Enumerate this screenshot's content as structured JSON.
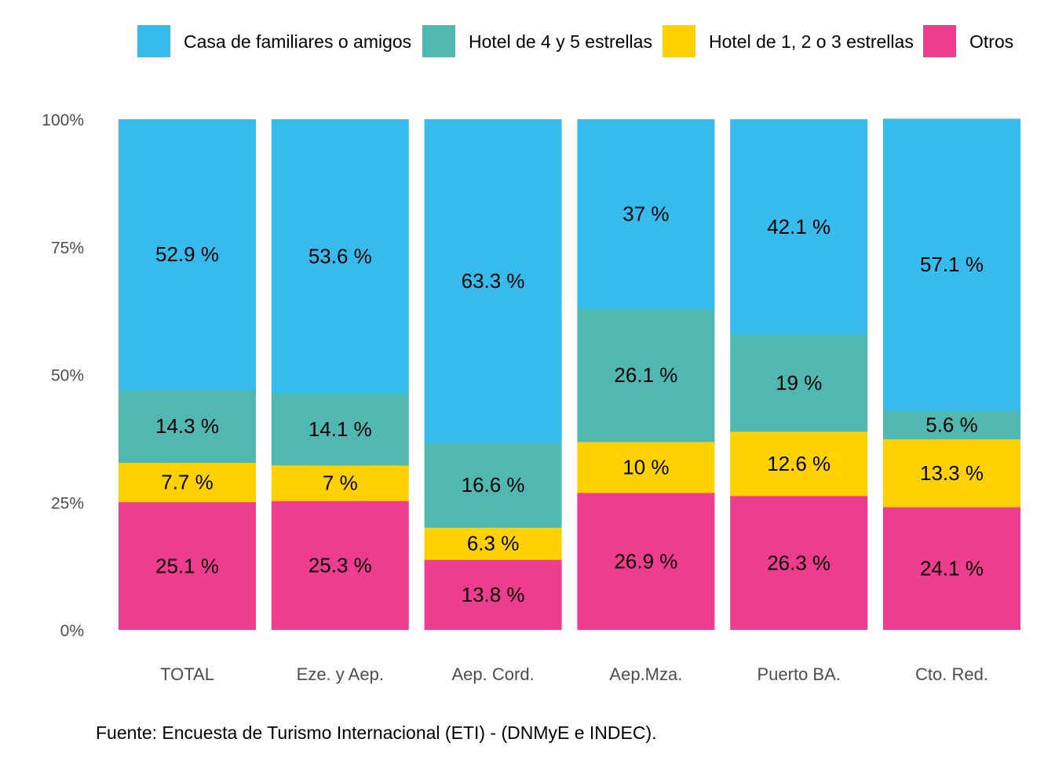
{
  "chart_data": {
    "type": "bar",
    "stacked": true,
    "normalized": true,
    "categories": [
      "TOTAL",
      "Eze. y Aep.",
      "Aep. Cord.",
      "Aep.Mza.",
      "Puerto BA.",
      "Cto. Red."
    ],
    "series": [
      {
        "name": "Otros",
        "color": "#EE3D8F",
        "values": [
          25.1,
          25.3,
          13.8,
          26.9,
          26.3,
          24.1
        ],
        "labels": [
          "25.1 %",
          "25.3 %",
          "13.8 %",
          "26.9 %",
          "26.3 %",
          "24.1 %"
        ]
      },
      {
        "name": "Hotel de 1, 2 o 3 estrellas",
        "color": "#FFD100",
        "values": [
          7.7,
          7,
          6.3,
          10,
          12.6,
          13.3
        ],
        "labels": [
          "7.7 %",
          "7 %",
          "6.3 %",
          "10 %",
          "12.6 %",
          "13.3 %"
        ]
      },
      {
        "name": "Hotel de 4 y 5 estrellas",
        "color": "#50B8B1",
        "values": [
          14.3,
          14.1,
          16.6,
          26.1,
          19,
          5.6
        ],
        "labels": [
          "14.3 %",
          "14.1 %",
          "16.6 %",
          "26.1 %",
          "19 %",
          "5.6 %"
        ]
      },
      {
        "name": "Casa de familiares o amigos",
        "color": "#37BBED",
        "values": [
          52.9,
          53.6,
          63.3,
          37,
          42.1,
          57.1
        ],
        "labels": [
          "52.9 %",
          "53.6 %",
          "63.3 %",
          "37 %",
          "42.1 %",
          "57.1 %"
        ]
      }
    ],
    "legend": {
      "position": "top",
      "order": [
        "Casa de familiares o amigos",
        "Hotel de 4 y 5 estrellas",
        "Hotel de 1, 2 o 3 estrellas",
        "Otros"
      ]
    },
    "yticks": [
      "0%",
      "25%",
      "50%",
      "75%",
      "100%"
    ],
    "ylim": [
      0,
      100
    ],
    "grid": false,
    "xlabel": "",
    "ylabel": "",
    "title": "",
    "caption": "Fuente: Encuesta de Turismo Internacional (ETI) - (DNMyE e INDEC)."
  }
}
